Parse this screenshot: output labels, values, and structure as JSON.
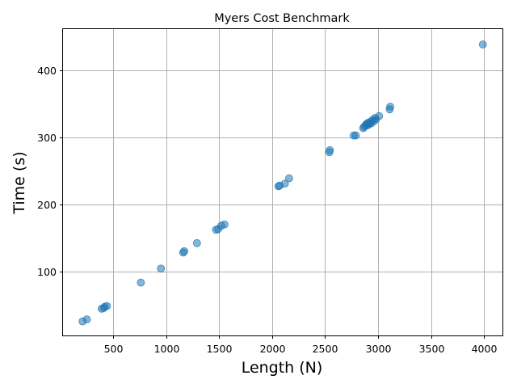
{
  "chart_data": {
    "type": "scatter",
    "title": "Myers Cost Benchmark",
    "xlabel": "Length (N)",
    "ylabel": "Time (s)",
    "xlim": [
      25,
      4175
    ],
    "ylim": [
      4,
      462
    ],
    "xticks": [
      500,
      1000,
      1500,
      2000,
      2500,
      3000,
      3500,
      4000
    ],
    "yticks": [
      100,
      200,
      300,
      400
    ],
    "grid": true,
    "marker_color": "#1f77b4",
    "marker_alpha": 0.55,
    "points": [
      {
        "x": 210,
        "y": 25
      },
      {
        "x": 250,
        "y": 28
      },
      {
        "x": 390,
        "y": 44
      },
      {
        "x": 410,
        "y": 45
      },
      {
        "x": 420,
        "y": 47
      },
      {
        "x": 440,
        "y": 48
      },
      {
        "x": 760,
        "y": 83
      },
      {
        "x": 950,
        "y": 104
      },
      {
        "x": 1160,
        "y": 128
      },
      {
        "x": 1170,
        "y": 130
      },
      {
        "x": 1290,
        "y": 142
      },
      {
        "x": 1470,
        "y": 162
      },
      {
        "x": 1490,
        "y": 163
      },
      {
        "x": 1520,
        "y": 168
      },
      {
        "x": 1550,
        "y": 170
      },
      {
        "x": 2060,
        "y": 227
      },
      {
        "x": 2070,
        "y": 228
      },
      {
        "x": 2120,
        "y": 231
      },
      {
        "x": 2160,
        "y": 239
      },
      {
        "x": 2540,
        "y": 278
      },
      {
        "x": 2545,
        "y": 281
      },
      {
        "x": 2770,
        "y": 303
      },
      {
        "x": 2790,
        "y": 303
      },
      {
        "x": 2860,
        "y": 314
      },
      {
        "x": 2870,
        "y": 316
      },
      {
        "x": 2880,
        "y": 318
      },
      {
        "x": 2890,
        "y": 320
      },
      {
        "x": 2900,
        "y": 318
      },
      {
        "x": 2905,
        "y": 322
      },
      {
        "x": 2915,
        "y": 320
      },
      {
        "x": 2925,
        "y": 323
      },
      {
        "x": 2935,
        "y": 321
      },
      {
        "x": 2945,
        "y": 326
      },
      {
        "x": 2960,
        "y": 324
      },
      {
        "x": 2970,
        "y": 329
      },
      {
        "x": 2980,
        "y": 327
      },
      {
        "x": 3010,
        "y": 332
      },
      {
        "x": 3110,
        "y": 342
      },
      {
        "x": 3115,
        "y": 346
      },
      {
        "x": 3990,
        "y": 439
      }
    ]
  }
}
